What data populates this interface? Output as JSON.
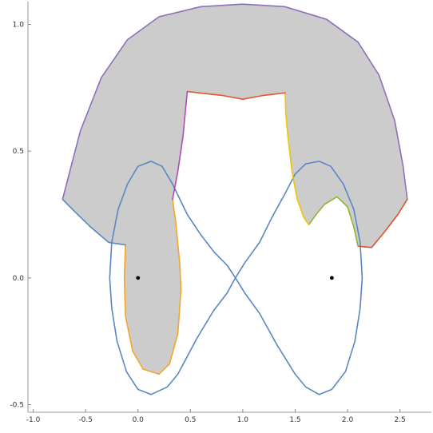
{
  "chart_data": {
    "type": "line",
    "title": "",
    "xlabel": "",
    "ylabel": "",
    "xlim": [
      -1.05,
      2.8
    ],
    "ylim": [
      -0.53,
      1.09
    ],
    "grid": false,
    "legend": "none",
    "x_ticks": [
      {
        "value": -1.0,
        "label": "-1.0"
      },
      {
        "value": -0.5,
        "label": "-0.5"
      },
      {
        "value": 0.0,
        "label": "0.0"
      },
      {
        "value": 0.5,
        "label": "0.5"
      },
      {
        "value": 1.0,
        "label": "1.0"
      },
      {
        "value": 1.5,
        "label": "1.5"
      },
      {
        "value": 2.0,
        "label": "2.0"
      },
      {
        "value": 2.5,
        "label": "2.5"
      }
    ],
    "y_ticks": [
      {
        "value": -0.5,
        "label": "-0.5"
      },
      {
        "value": 0.0,
        "label": "0.0"
      },
      {
        "value": 0.5,
        "label": "0.5"
      },
      {
        "value": 1.0,
        "label": "1.0"
      }
    ],
    "shaded_region": {
      "color": "#cccccc",
      "points": [
        [
          -0.72,
          0.31
        ],
        [
          -0.55,
          0.58
        ],
        [
          -0.35,
          0.79
        ],
        [
          -0.1,
          0.94
        ],
        [
          0.2,
          1.03
        ],
        [
          0.6,
          1.07
        ],
        [
          1.0,
          1.08
        ],
        [
          1.4,
          1.07
        ],
        [
          1.8,
          1.02
        ],
        [
          2.1,
          0.93
        ],
        [
          2.3,
          0.8
        ],
        [
          2.45,
          0.62
        ],
        [
          2.53,
          0.44
        ],
        [
          2.57,
          0.31
        ],
        [
          2.48,
          0.25
        ],
        [
          2.35,
          0.18
        ],
        [
          2.23,
          0.12
        ],
        [
          2.1,
          0.125
        ],
        [
          2.06,
          0.2
        ],
        [
          2.0,
          0.28
        ],
        [
          1.9,
          0.32
        ],
        [
          1.78,
          0.29
        ],
        [
          1.7,
          0.25
        ],
        [
          1.63,
          0.21
        ],
        [
          1.58,
          0.24
        ],
        [
          1.52,
          0.31
        ],
        [
          1.47,
          0.42
        ],
        [
          1.43,
          0.56
        ],
        [
          1.41,
          0.65
        ],
        [
          1.405,
          0.73
        ],
        [
          1.2,
          0.72
        ],
        [
          1.0,
          0.705
        ],
        [
          0.8,
          0.72
        ],
        [
          0.47,
          0.735
        ],
        [
          0.43,
          0.56
        ],
        [
          0.38,
          0.42
        ],
        [
          0.33,
          0.31
        ],
        [
          0.36,
          0.22
        ],
        [
          0.4,
          0.05
        ],
        [
          0.41,
          -0.05
        ],
        [
          0.38,
          -0.22
        ],
        [
          0.3,
          -0.34
        ],
        [
          0.2,
          -0.38
        ],
        [
          0.05,
          -0.36
        ],
        [
          -0.05,
          -0.29
        ],
        [
          -0.12,
          -0.15
        ],
        [
          -0.13,
          0.0
        ],
        [
          -0.12,
          0.13
        ],
        [
          -0.28,
          0.14
        ],
        [
          -0.45,
          0.2
        ],
        [
          -0.6,
          0.26
        ]
      ]
    },
    "curves": [
      {
        "color": "#5b86c4",
        "points": [
          [
            0.125,
            0.46
          ],
          [
            0.23,
            0.44
          ],
          [
            0.33,
            0.37
          ],
          [
            0.47,
            0.25
          ],
          [
            0.6,
            0.17
          ],
          [
            0.73,
            0.1
          ],
          [
            0.85,
            0.05
          ],
          [
            0.93,
            0.0
          ],
          [
            1.02,
            -0.06
          ],
          [
            1.16,
            -0.14
          ],
          [
            1.32,
            -0.26
          ],
          [
            1.5,
            -0.38
          ],
          [
            1.6,
            -0.43
          ],
          [
            1.73,
            -0.46
          ],
          [
            1.85,
            -0.44
          ],
          [
            1.98,
            -0.37
          ],
          [
            2.07,
            -0.25
          ],
          [
            2.12,
            -0.12
          ],
          [
            2.14,
            0.0
          ],
          [
            2.12,
            0.14
          ],
          [
            2.06,
            0.27
          ],
          [
            1.96,
            0.37
          ],
          [
            1.84,
            0.44
          ],
          [
            1.73,
            0.46
          ],
          [
            1.6,
            0.45
          ],
          [
            1.5,
            0.41
          ],
          [
            1.4,
            0.33
          ],
          [
            1.28,
            0.24
          ],
          [
            1.16,
            0.14
          ],
          [
            1.02,
            0.06
          ],
          [
            0.93,
            0.0
          ],
          [
            0.85,
            -0.06
          ],
          [
            0.72,
            -0.13
          ],
          [
            0.56,
            -0.24
          ],
          [
            0.38,
            -0.38
          ],
          [
            0.28,
            -0.43
          ],
          [
            0.125,
            -0.46
          ],
          [
            0.0,
            -0.44
          ],
          [
            -0.11,
            -0.37
          ],
          [
            -0.2,
            -0.25
          ],
          [
            -0.25,
            -0.12
          ],
          [
            -0.27,
            0.0
          ],
          [
            -0.25,
            0.14
          ],
          [
            -0.19,
            0.27
          ],
          [
            -0.1,
            0.37
          ],
          [
            0.0,
            0.44
          ],
          [
            0.125,
            0.46
          ]
        ]
      },
      {
        "color": "#f5a623",
        "points": [
          [
            0.33,
            0.31
          ],
          [
            0.36,
            0.22
          ],
          [
            0.4,
            0.05
          ],
          [
            0.41,
            -0.05
          ],
          [
            0.38,
            -0.22
          ],
          [
            0.3,
            -0.34
          ],
          [
            0.2,
            -0.38
          ],
          [
            0.05,
            -0.36
          ],
          [
            -0.05,
            -0.29
          ],
          [
            -0.12,
            -0.15
          ],
          [
            -0.13,
            0.0
          ],
          [
            -0.12,
            0.13
          ]
        ]
      },
      {
        "color": "#5b86c4",
        "points": [
          [
            -0.12,
            0.13
          ],
          [
            -0.28,
            0.14
          ],
          [
            -0.45,
            0.2
          ],
          [
            -0.6,
            0.26
          ],
          [
            -0.72,
            0.31
          ]
        ]
      },
      {
        "color": "#8e6fbd",
        "points": [
          [
            -0.72,
            0.31
          ],
          [
            -0.55,
            0.58
          ],
          [
            -0.35,
            0.79
          ],
          [
            -0.1,
            0.94
          ],
          [
            0.2,
            1.03
          ],
          [
            0.6,
            1.07
          ],
          [
            1.0,
            1.08
          ],
          [
            1.4,
            1.07
          ],
          [
            1.8,
            1.02
          ],
          [
            2.1,
            0.93
          ],
          [
            2.3,
            0.8
          ],
          [
            2.45,
            0.62
          ],
          [
            2.53,
            0.44
          ],
          [
            2.57,
            0.31
          ]
        ]
      },
      {
        "color": "#d9542b",
        "points": [
          [
            2.57,
            0.31
          ],
          [
            2.48,
            0.25
          ],
          [
            2.35,
            0.18
          ],
          [
            2.23,
            0.12
          ],
          [
            2.1,
            0.125
          ]
        ]
      },
      {
        "color": "#8fb52e",
        "points": [
          [
            2.1,
            0.125
          ],
          [
            2.06,
            0.2
          ],
          [
            2.0,
            0.28
          ],
          [
            1.9,
            0.32
          ],
          [
            1.78,
            0.29
          ],
          [
            1.7,
            0.25
          ],
          [
            1.63,
            0.21
          ]
        ]
      },
      {
        "color": "#f2c300",
        "points": [
          [
            1.63,
            0.21
          ],
          [
            1.58,
            0.24
          ],
          [
            1.52,
            0.31
          ],
          [
            1.47,
            0.42
          ],
          [
            1.43,
            0.56
          ],
          [
            1.41,
            0.65
          ],
          [
            1.405,
            0.73
          ]
        ]
      },
      {
        "color": "#e3572d",
        "points": [
          [
            1.405,
            0.73
          ],
          [
            1.2,
            0.72
          ],
          [
            1.0,
            0.705
          ],
          [
            0.8,
            0.72
          ],
          [
            0.47,
            0.735
          ]
        ]
      },
      {
        "color": "#b14bb7",
        "points": [
          [
            0.47,
            0.735
          ],
          [
            0.43,
            0.56
          ],
          [
            0.38,
            0.42
          ],
          [
            0.33,
            0.31
          ]
        ]
      }
    ],
    "points": [
      {
        "x": 0.0,
        "y": 0.0,
        "color": "#000000"
      },
      {
        "x": 1.85,
        "y": 0.0,
        "color": "#000000"
      }
    ]
  }
}
